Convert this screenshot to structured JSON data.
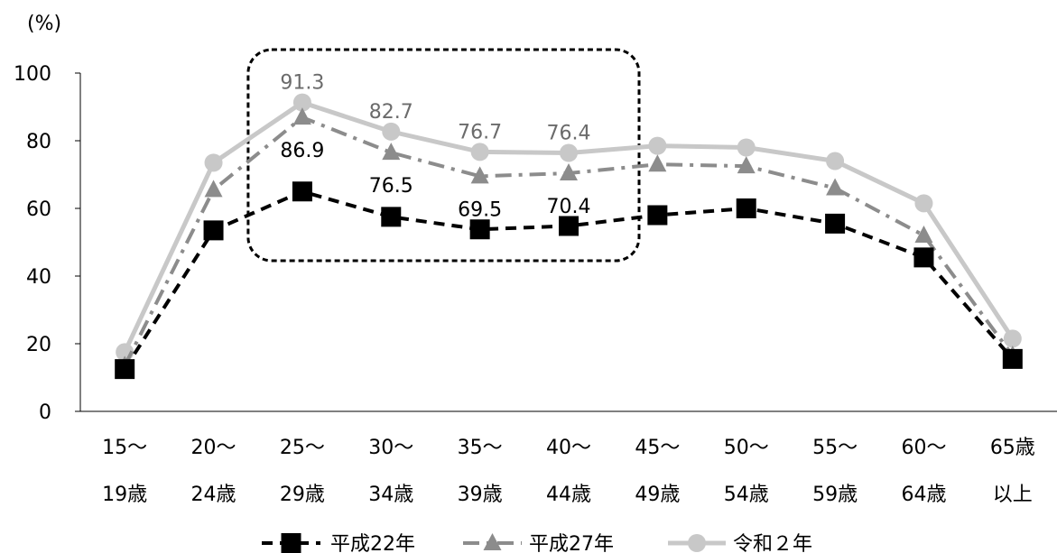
{
  "chart_data": {
    "type": "line",
    "unit_label": "(%)",
    "y_axis": {
      "min": 0,
      "max": 100,
      "ticks": [
        "0",
        "20",
        "40",
        "60",
        "80",
        "100"
      ]
    },
    "categories": [
      [
        "15～",
        "19歳"
      ],
      [
        "20～",
        "24歳"
      ],
      [
        "25～",
        "29歳"
      ],
      [
        "30～",
        "34歳"
      ],
      [
        "35～",
        "39歳"
      ],
      [
        "40～",
        "44歳"
      ],
      [
        "45～",
        "49歳"
      ],
      [
        "50～",
        "54歳"
      ],
      [
        "55～",
        "59歳"
      ],
      [
        "60～",
        "64歳"
      ],
      [
        "65歳",
        "以上"
      ]
    ],
    "series": [
      {
        "name": "平成22年",
        "values": [
          12.5,
          53.5,
          65.0,
          57.5,
          53.8,
          54.8,
          58.0,
          60.0,
          55.5,
          45.5,
          15.5
        ],
        "color": "#000000",
        "marker": "square",
        "line_style": "dashed"
      },
      {
        "name": "平成27年",
        "values": [
          13.5,
          65.5,
          86.9,
          76.5,
          69.5,
          70.4,
          73.0,
          72.5,
          66.0,
          52.0,
          16.5
        ],
        "color": "#8c8c8c",
        "marker": "triangle",
        "line_style": "dash-dot"
      },
      {
        "name": "令和２年",
        "values": [
          17.5,
          73.5,
          91.3,
          82.7,
          76.7,
          76.4,
          78.5,
          78.0,
          74.0,
          61.5,
          21.5
        ],
        "color": "#c8c8c8",
        "marker": "circle",
        "line_style": "solid"
      }
    ],
    "data_labels": [
      {
        "series": 2,
        "index": 2,
        "text": "91.3"
      },
      {
        "series": 2,
        "index": 3,
        "text": "82.7"
      },
      {
        "series": 2,
        "index": 4,
        "text": "76.7"
      },
      {
        "series": 2,
        "index": 5,
        "text": "76.4"
      },
      {
        "series": 1,
        "index": 2,
        "text": "86.9"
      },
      {
        "series": 1,
        "index": 3,
        "text": "76.5"
      },
      {
        "series": 1,
        "index": 4,
        "text": "69.5"
      },
      {
        "series": 1,
        "index": 5,
        "text": "70.4"
      }
    ],
    "highlight_box_categories": [
      2,
      5
    ],
    "grid": false,
    "legend_position": "bottom"
  }
}
